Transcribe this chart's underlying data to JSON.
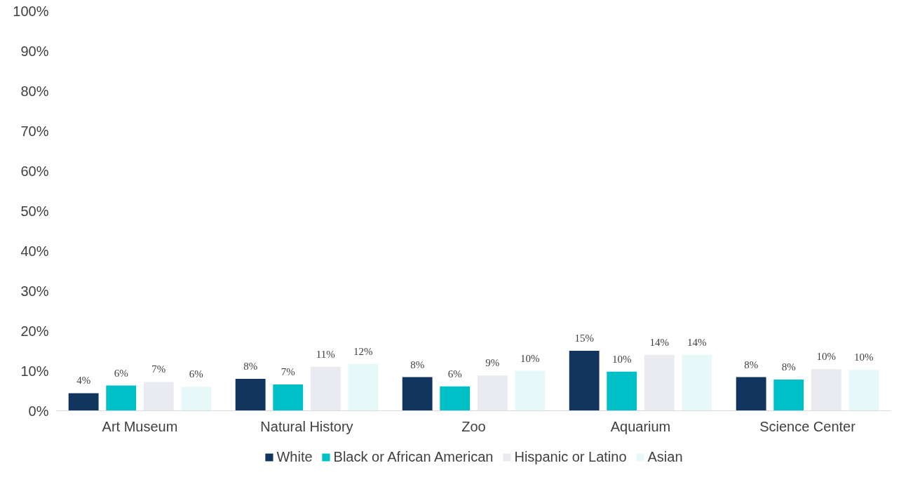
{
  "chart_data": {
    "type": "bar",
    "categories": [
      "Art Museum",
      "Natural History",
      "Zoo",
      "Aquarium",
      "Science Center"
    ],
    "series": [
      {
        "name": "White",
        "color": "#12355f",
        "values": [
          4.4,
          8.0,
          8.4,
          15.0,
          8.4
        ],
        "value_labels": [
          "4%",
          "8%",
          "8%",
          "15%",
          "8%"
        ]
      },
      {
        "name": "Black or African American",
        "color": "#00c0c7",
        "values": [
          6.3,
          6.6,
          6.1,
          9.8,
          7.8
        ],
        "value_labels": [
          "6%",
          "7%",
          "6%",
          "10%",
          "8%"
        ]
      },
      {
        "name": "Hispanic or Latino",
        "color": "#e9ebf1",
        "values": [
          7.2,
          11.0,
          8.8,
          14.0,
          10.4
        ],
        "value_labels": [
          "7%",
          "11%",
          "9%",
          "14%",
          "10%"
        ]
      },
      {
        "name": "Asian",
        "color": "#e7f8f9",
        "values": [
          6.0,
          11.7,
          10.0,
          14.0,
          10.2
        ],
        "value_labels": [
          "6%",
          "12%",
          "10%",
          "14%",
          "10%"
        ]
      }
    ],
    "ylim": [
      0,
      100
    ],
    "yticks": [
      {
        "value": 0,
        "label": "0%"
      },
      {
        "value": 10,
        "label": "10%"
      },
      {
        "value": 20,
        "label": "20%"
      },
      {
        "value": 30,
        "label": "30%"
      },
      {
        "value": 40,
        "label": "40%"
      },
      {
        "value": 50,
        "label": "50%"
      },
      {
        "value": 60,
        "label": "60%"
      },
      {
        "value": 70,
        "label": "70%"
      },
      {
        "value": 80,
        "label": "80%"
      },
      {
        "value": 90,
        "label": "90%"
      },
      {
        "value": 100,
        "label": "100%"
      }
    ],
    "grid": false,
    "legend": "bottom"
  }
}
